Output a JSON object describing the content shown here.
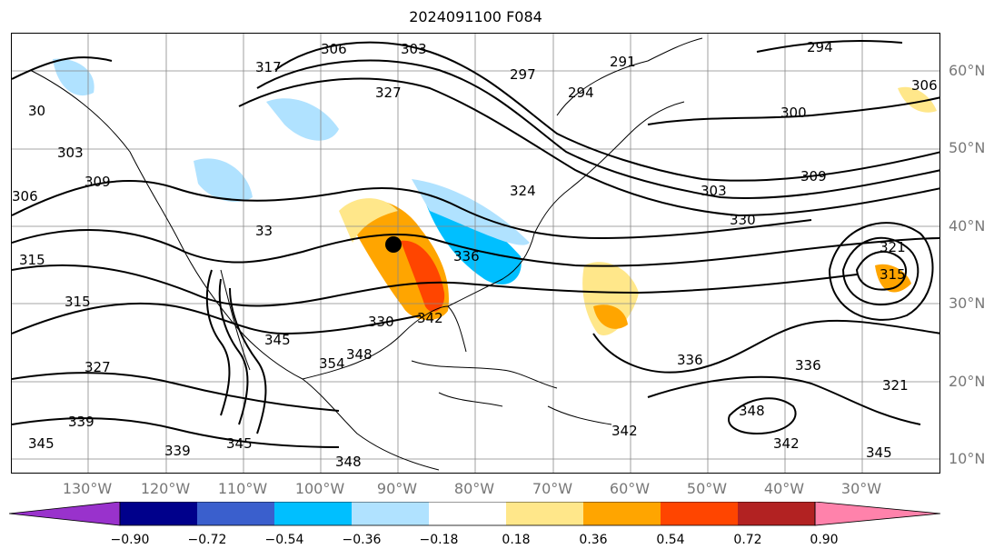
{
  "title": "2024091100 F084",
  "lat_labels": [
    "60°N",
    "50°N",
    "40°N",
    "30°N",
    "20°N",
    "10°N"
  ],
  "lon_labels": [
    "130°W",
    "120°W",
    "110°W",
    "100°W",
    "90°W",
    "80°W",
    "70°W",
    "60°W",
    "50°W",
    "40°W",
    "30°W"
  ],
  "colorbar": {
    "ticks": [
      "−0.90",
      "−0.72",
      "−0.54",
      "−0.36",
      "−0.18",
      "0.18",
      "0.36",
      "0.54",
      "0.72",
      "0.90"
    ],
    "colors": [
      "#9932cc",
      "#00008b",
      "#3a5fcd",
      "#00bfff",
      "#b0e2ff",
      "#ffffff",
      "#ffe78a",
      "#ffa500",
      "#ff4500",
      "#b22222",
      "#ff82ab"
    ]
  },
  "contour_labels": [
    "306",
    "303",
    "317",
    "327",
    "291",
    "294",
    "306",
    "297",
    "294",
    "300",
    "30",
    "303",
    "309",
    "306",
    "309",
    "303",
    "330",
    "33",
    "315",
    "315",
    "321",
    "315",
    "330",
    "342",
    "354",
    "348",
    "336",
    "336",
    "327",
    "348",
    "339",
    "342",
    "345",
    "339",
    "345",
    "348",
    "342",
    "345",
    "345",
    "336",
    "324",
    "321"
  ],
  "center_marker": "storm-center"
}
